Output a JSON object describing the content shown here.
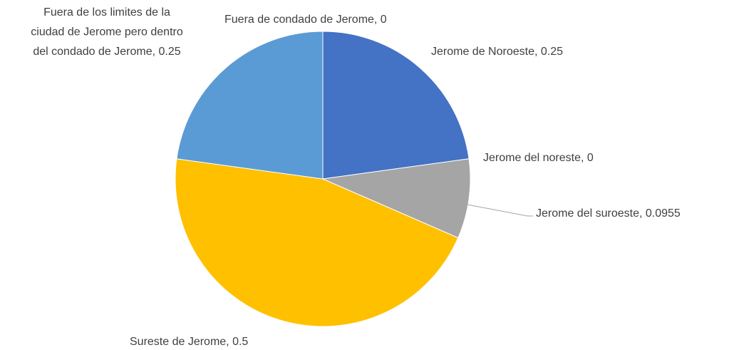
{
  "chart_data": {
    "type": "pie",
    "values": [
      0.25,
      0,
      0.0955,
      0.5,
      0.25,
      0
    ],
    "value_labels": [
      "Jerome de Noroeste, 0.25",
      "Jerome del noreste, 0",
      "Jerome del suroeste, 0.0955",
      "Sureste de Jerome, 0.5",
      [
        "Fuera de los limites de la",
        "ciudad de Jerome pero dentro",
        "del condado de Jerome, 0.25"
      ],
      "Fuera de condado de Jerome, 0"
    ],
    "colors": [
      "#4472c4",
      "#ed7d31",
      "#a5a5a5",
      "#ffc000",
      "#5b9bd5",
      "#264478"
    ]
  }
}
